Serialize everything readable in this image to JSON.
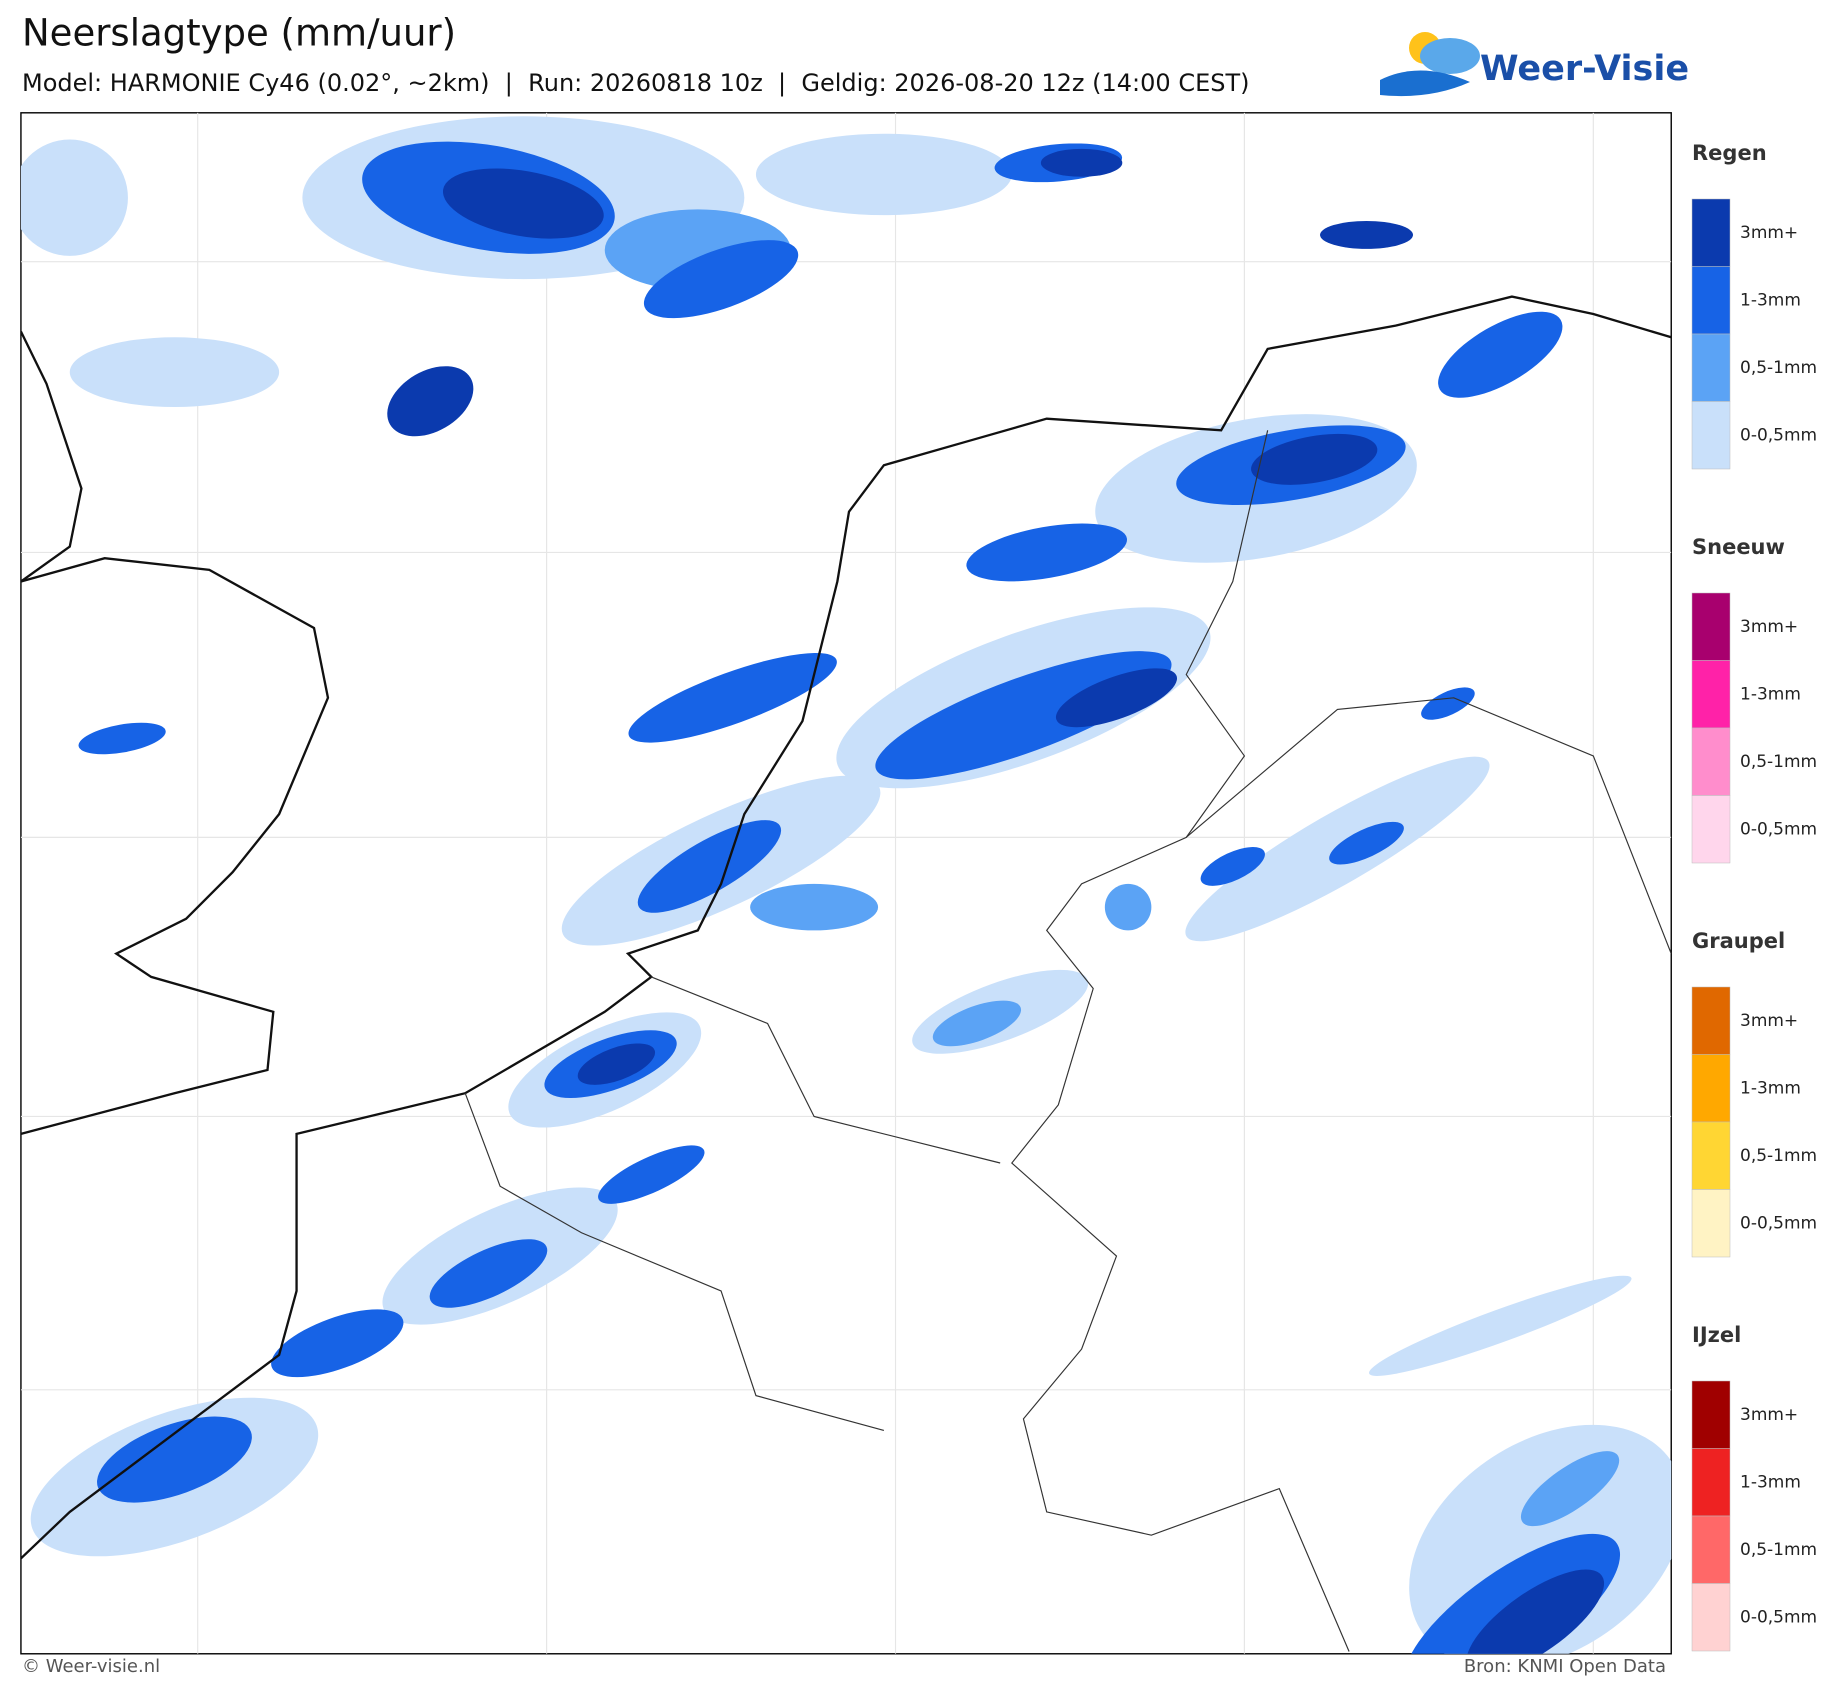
{
  "header": {
    "title": "Neerslagtype (mm/uur)",
    "subtitle": "Model: HARMONIE Cy46 (0.02°, ~2km)  |  Run: 20260818 10z  |  Geldig: 2026-08-20 12z (14:00 CEST)"
  },
  "logo": {
    "text": "Weer-Visie"
  },
  "legend": {
    "groups": [
      {
        "title": "Regen",
        "items": [
          {
            "label": "3mm+",
            "color": "#0b3aae"
          },
          {
            "label": "1-3mm",
            "color": "#1763e6"
          },
          {
            "label": "0,5-1mm",
            "color": "#5ba3f5"
          },
          {
            "label": "0-0,5mm",
            "color": "#c9e0fa"
          }
        ]
      },
      {
        "title": "Sneeuw",
        "items": [
          {
            "label": "3mm+",
            "color": "#a8006e"
          },
          {
            "label": "1-3mm",
            "color": "#ff22a8"
          },
          {
            "label": "0,5-1mm",
            "color": "#ff8dcc"
          },
          {
            "label": "0-0,5mm",
            "color": "#ffd6ec"
          }
        ]
      },
      {
        "title": "Graupel",
        "items": [
          {
            "label": "3mm+",
            "color": "#e06800"
          },
          {
            "label": "1-3mm",
            "color": "#ffa800"
          },
          {
            "label": "0,5-1mm",
            "color": "#ffd633"
          },
          {
            "label": "0-0,5mm",
            "color": "#fff3c4"
          }
        ]
      },
      {
        "title": "IJzel",
        "items": [
          {
            "label": "3mm+",
            "color": "#a00000"
          },
          {
            "label": "1-3mm",
            "color": "#ee2222"
          },
          {
            "label": "0,5-1mm",
            "color": "#ff6868"
          },
          {
            "label": "0-0,5mm",
            "color": "#ffd2d2"
          }
        ]
      }
    ]
  },
  "footer": {
    "left": "© Weer-visie.nl",
    "right": "Bron: KNMI Open Data"
  }
}
